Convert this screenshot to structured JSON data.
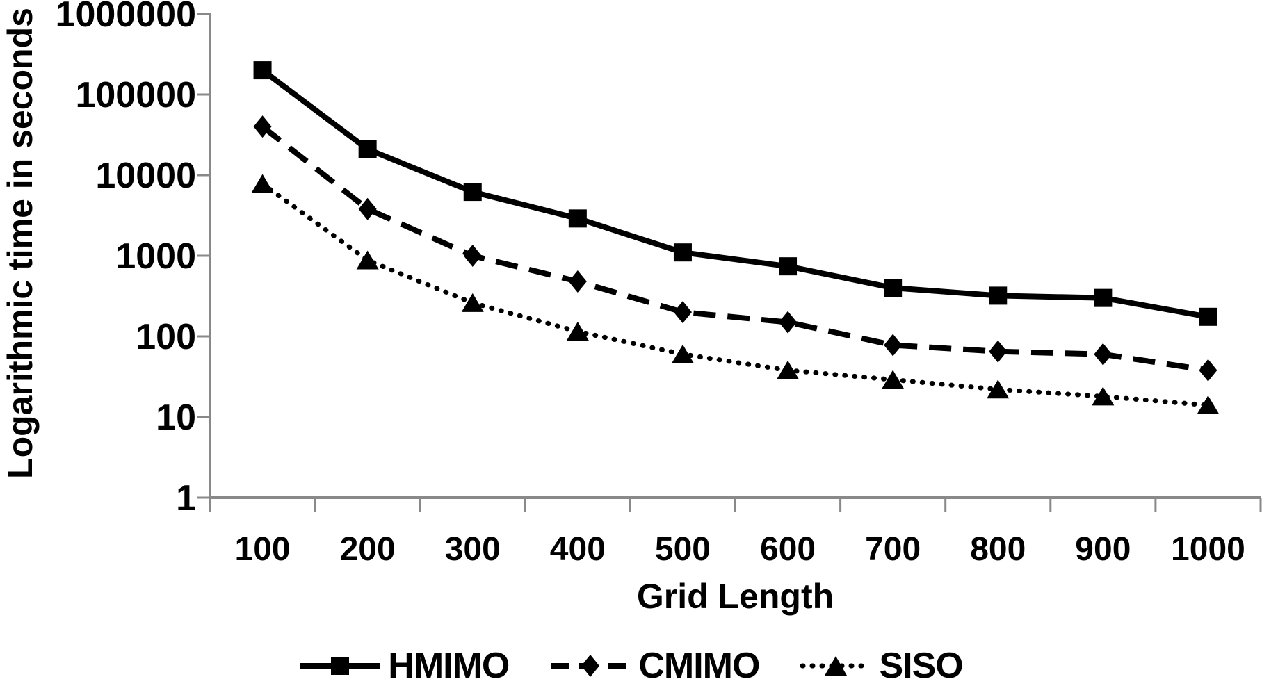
{
  "figure": {
    "background": "#ffffff",
    "axis_color": "#898989",
    "series_color": "#000000",
    "text_color": "#000000"
  },
  "chart_data": {
    "type": "line",
    "title": "",
    "xlabel": "Grid Length",
    "ylabel": "Logarithmic time in seconds",
    "x_scale": "categorical",
    "y_scale": "log10",
    "ylim": [
      1,
      1000000
    ],
    "y_ticks": [
      1,
      10,
      100,
      1000,
      10000,
      100000,
      1000000
    ],
    "y_tick_labels": [
      "1",
      "10",
      "100",
      "1000",
      "10000",
      "100000",
      "1000000"
    ],
    "categories": [
      "100",
      "200",
      "300",
      "400",
      "500",
      "600",
      "700",
      "800",
      "900",
      "1000"
    ],
    "grid": false,
    "legend_position": "bottom",
    "series": [
      {
        "name": "HMIMO",
        "marker": "square",
        "line_style": "solid",
        "values": [
          200000,
          21000,
          6200,
          2900,
          1100,
          740,
          400,
          320,
          300,
          175
        ]
      },
      {
        "name": "CMIMO",
        "marker": "diamond",
        "line_style": "dashed",
        "values": [
          40000,
          3800,
          1000,
          480,
          200,
          150,
          78,
          65,
          60,
          38
        ]
      },
      {
        "name": "SISO",
        "marker": "triangle",
        "line_style": "dotted",
        "values": [
          7800,
          880,
          260,
          115,
          60,
          38,
          29,
          22,
          18,
          14
        ]
      }
    ]
  }
}
